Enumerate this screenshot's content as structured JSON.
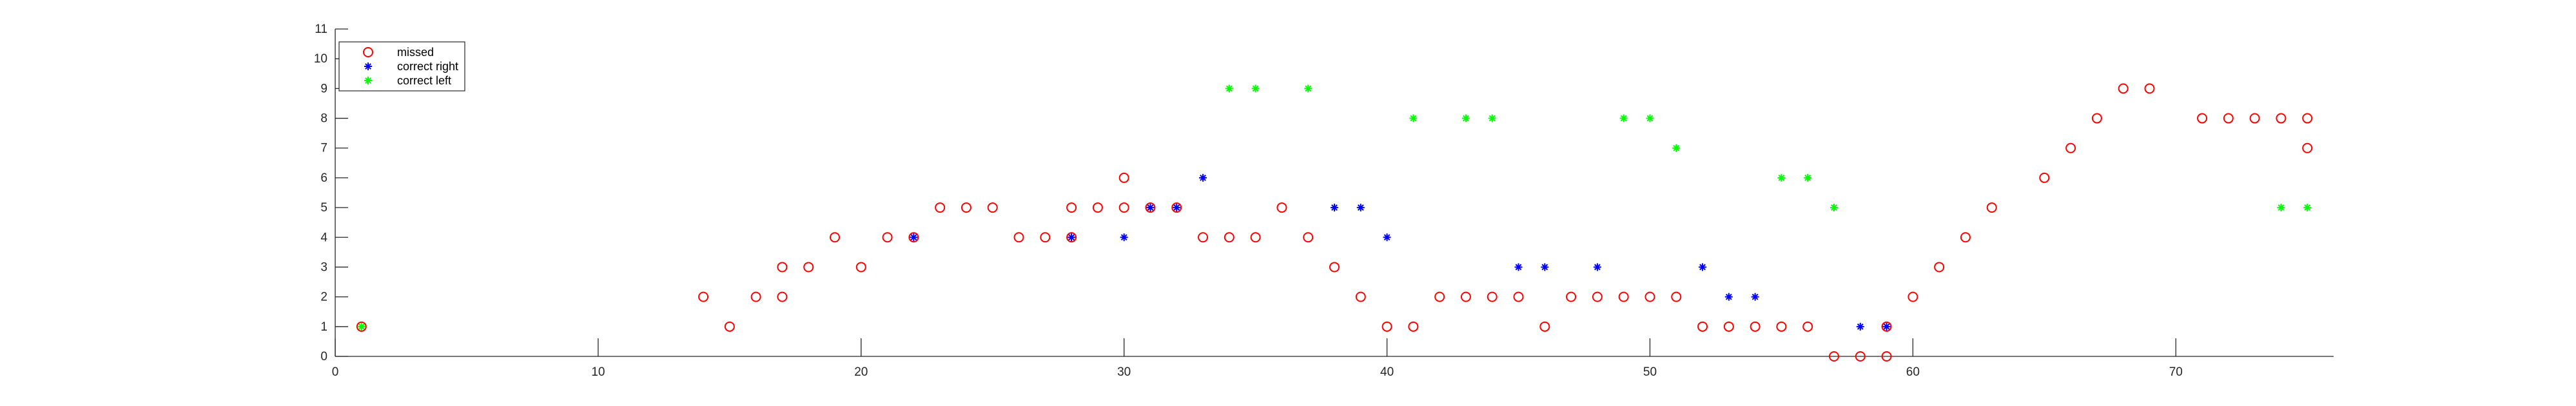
{
  "chart_data": {
    "type": "scatter",
    "title": "",
    "xlabel": "",
    "ylabel": "",
    "xlim": [
      0,
      76
    ],
    "ylim": [
      0,
      11
    ],
    "xticks": [
      0,
      10,
      20,
      30,
      40,
      50,
      60,
      70
    ],
    "yticks": [
      0,
      1,
      2,
      3,
      4,
      5,
      6,
      7,
      8,
      9,
      10,
      11
    ],
    "grid": false,
    "legend_position": "top-left",
    "series": [
      {
        "name": "missed",
        "marker": "open-circle",
        "color": "#ff0000",
        "points": [
          [
            1,
            1
          ],
          [
            14,
            2
          ],
          [
            15,
            1
          ],
          [
            16,
            2
          ],
          [
            17,
            3
          ],
          [
            17,
            2
          ],
          [
            18,
            3
          ],
          [
            19,
            4
          ],
          [
            20,
            3
          ],
          [
            21,
            4
          ],
          [
            22,
            4
          ],
          [
            23,
            5
          ],
          [
            24,
            5
          ],
          [
            25,
            5
          ],
          [
            26,
            4
          ],
          [
            27,
            4
          ],
          [
            28,
            5
          ],
          [
            28,
            4
          ],
          [
            29,
            5
          ],
          [
            30,
            6
          ],
          [
            30,
            5
          ],
          [
            31,
            5
          ],
          [
            32,
            5
          ],
          [
            33,
            4
          ],
          [
            34,
            4
          ],
          [
            35,
            4
          ],
          [
            36,
            5
          ],
          [
            37,
            4
          ],
          [
            38,
            3
          ],
          [
            39,
            2
          ],
          [
            40,
            1
          ],
          [
            41,
            1
          ],
          [
            42,
            2
          ],
          [
            43,
            2
          ],
          [
            44,
            2
          ],
          [
            45,
            2
          ],
          [
            46,
            1
          ],
          [
            47,
            2
          ],
          [
            48,
            2
          ],
          [
            49,
            2
          ],
          [
            50,
            2
          ],
          [
            51,
            2
          ],
          [
            52,
            1
          ],
          [
            53,
            1
          ],
          [
            54,
            1
          ],
          [
            55,
            1
          ],
          [
            56,
            1
          ],
          [
            57,
            0
          ],
          [
            58,
            0
          ],
          [
            59,
            0
          ],
          [
            59,
            1
          ],
          [
            60,
            2
          ],
          [
            61,
            3
          ],
          [
            62,
            4
          ],
          [
            63,
            5
          ],
          [
            65,
            6
          ],
          [
            66,
            7
          ],
          [
            67,
            8
          ],
          [
            68,
            9
          ],
          [
            69,
            9
          ],
          [
            71,
            8
          ],
          [
            72,
            8
          ],
          [
            73,
            8
          ],
          [
            74,
            8
          ],
          [
            75,
            8
          ],
          [
            75,
            7
          ]
        ]
      },
      {
        "name": "correct right",
        "marker": "asterisk",
        "color": "#0000ff",
        "points": [
          [
            22,
            4
          ],
          [
            28,
            4
          ],
          [
            30,
            4
          ],
          [
            31,
            5
          ],
          [
            32,
            5
          ],
          [
            33,
            6
          ],
          [
            38,
            5
          ],
          [
            39,
            5
          ],
          [
            40,
            4
          ],
          [
            45,
            3
          ],
          [
            46,
            3
          ],
          [
            48,
            3
          ],
          [
            52,
            3
          ],
          [
            53,
            2
          ],
          [
            54,
            2
          ],
          [
            58,
            1
          ],
          [
            59,
            1
          ]
        ]
      },
      {
        "name": "correct left",
        "marker": "asterisk",
        "color": "#00ff00",
        "points": [
          [
            1,
            1
          ],
          [
            34,
            9
          ],
          [
            35,
            9
          ],
          [
            37,
            9
          ],
          [
            41,
            8
          ],
          [
            43,
            8
          ],
          [
            44,
            8
          ],
          [
            49,
            8
          ],
          [
            50,
            8
          ],
          [
            51,
            7
          ],
          [
            55,
            6
          ],
          [
            56,
            6
          ],
          [
            57,
            5
          ],
          [
            74,
            5
          ],
          [
            75,
            5
          ]
        ]
      }
    ]
  }
}
